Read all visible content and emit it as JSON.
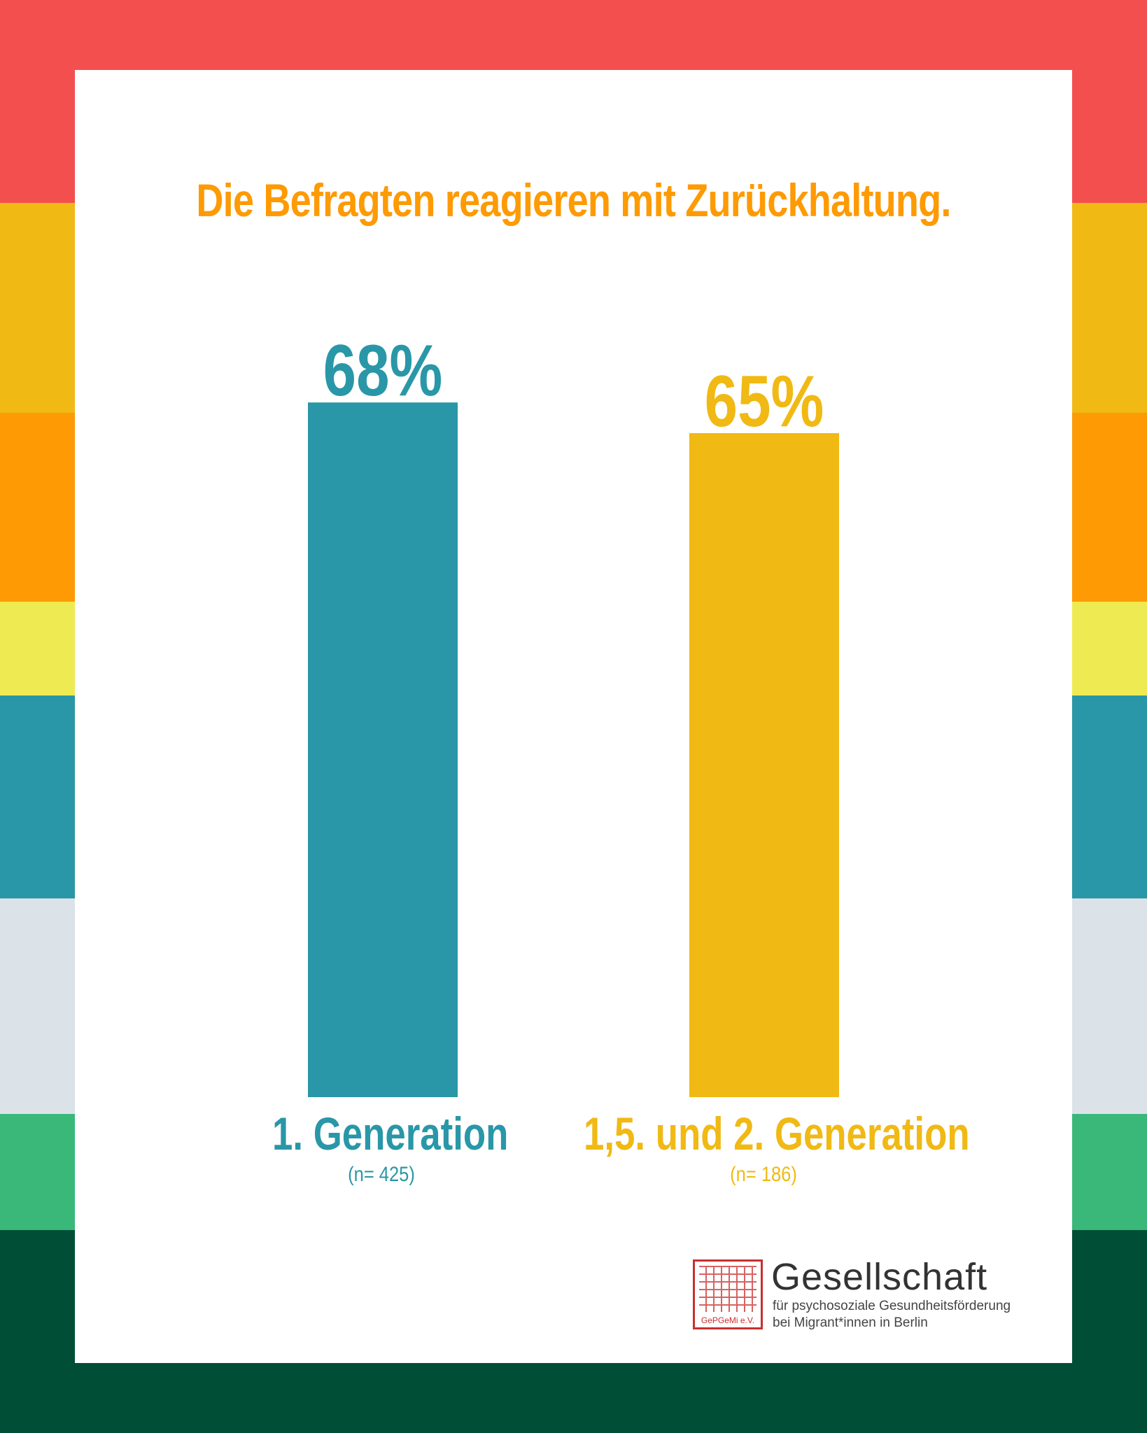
{
  "colors": {
    "stripes": [
      "#f44f4f",
      "#f0b914",
      "#fe9a03",
      "#eeea52",
      "#2997a7",
      "#dbe3e8",
      "#3ab87a",
      "#004e35"
    ],
    "title": "#fe9a03",
    "series1": "#2997a7",
    "series2": "#f0b914"
  },
  "chart_data": {
    "type": "bar",
    "title": "Die Befragten reagieren mit Zurückhaltung.",
    "categories": [
      "1.  Generation",
      "1,5. und 2.  Generation"
    ],
    "sample_sizes": [
      "(n= 425)",
      "(n= 186)"
    ],
    "values": [
      68,
      65
    ],
    "value_labels": [
      "68%",
      "65%"
    ],
    "ylim": [
      0,
      100
    ],
    "grid": false
  },
  "logo": {
    "seal_text": "GePGeMi e.V.",
    "name": "Gesellschaft",
    "line1": "für psychosoziale Gesundheitsförderung",
    "line2": "bei Migrant*innen in Berlin"
  }
}
